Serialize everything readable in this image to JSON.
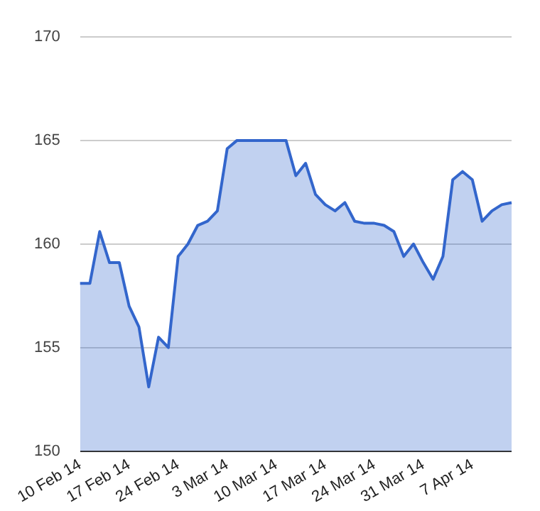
{
  "chart_data": {
    "type": "area",
    "categories": [
      "10 Feb 14",
      null,
      null,
      null,
      null,
      "17 Feb 14",
      null,
      null,
      null,
      null,
      "24 Feb 14",
      null,
      null,
      null,
      null,
      "3 Mar 14",
      null,
      null,
      null,
      null,
      "10 Mar 14",
      null,
      null,
      null,
      null,
      "17 Mar 14",
      null,
      null,
      null,
      null,
      "24 Mar 14",
      null,
      null,
      null,
      null,
      "31 Mar 14",
      null,
      null,
      null,
      null,
      "7 Apr 14",
      null,
      null,
      null,
      null
    ],
    "series": [
      {
        "color": "#3366cc",
        "values": [
          158.1,
          158.1,
          160.6,
          159.1,
          159.1,
          157.0,
          156.0,
          153.1,
          155.5,
          155.0,
          159.4,
          160.0,
          160.9,
          161.1,
          161.6,
          164.6,
          165.0,
          165.0,
          165.0,
          165.0,
          165.0,
          165.0,
          163.3,
          163.9,
          162.4,
          161.9,
          161.6,
          162.0,
          161.1,
          161.0,
          161.0,
          160.9,
          160.6,
          159.4,
          160.0,
          159.1,
          158.3,
          159.4,
          163.1,
          163.5,
          163.1,
          161.1,
          161.6,
          161.9,
          162.0
        ]
      }
    ],
    "ylim": [
      150,
      170
    ],
    "yticks": [
      150,
      155,
      160,
      165,
      170
    ],
    "grid": "y",
    "legend": false
  }
}
